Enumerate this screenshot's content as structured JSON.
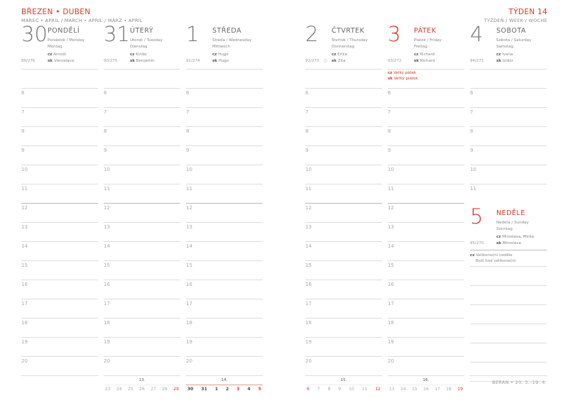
{
  "header": {
    "months": "BŘEZEN • DUBEN",
    "months_sub": "MAREC • APRÍL / MARCH • APRIL / MÄRZ • APRIL",
    "week": "TÝDEN 14",
    "week_sub": "TÝŽDEŇ / WEEK / WOCHE"
  },
  "hours": [
    "6",
    "7",
    "8",
    "9",
    "10",
    "11",
    "12",
    "13",
    "14",
    "15",
    "16",
    "17",
    "18",
    "19",
    "20"
  ],
  "days": [
    {
      "num": "30",
      "name": "PONDĚLÍ",
      "sub1": "Pondelok / Monday",
      "sub2": "Montag",
      "doy": "89/276",
      "cz": "Arnošt",
      "sk": "Vieroslava",
      "red": false
    },
    {
      "num": "31",
      "name": "ÚTERÝ",
      "sub1": "Utorok / Tuesday",
      "sub2": "Dienstag",
      "doy": "90/275",
      "cz": "Kvido",
      "sk": "Benjamín",
      "red": false
    },
    {
      "num": "1",
      "name": "STŘEDA",
      "sub1": "Streda / Wednesday",
      "sub2": "Mittwoch",
      "doy": "91/274",
      "cz": "Hugo",
      "sk": "Hugo",
      "red": false
    },
    {
      "num": "2",
      "name": "ČTVRTEK",
      "sub1": "Štvrtok / Thursday",
      "sub2": "Donnerstag",
      "doy": "92/273",
      "moon": "○",
      "cz": "Erika",
      "sk": "Zita",
      "red": false
    },
    {
      "num": "3",
      "name": "PÁTEK",
      "sub1": "Piatok / Friday",
      "sub2": "Freitag",
      "doy": "93/272",
      "cz": "Richard",
      "sk": "Richard",
      "red": true,
      "hol_cz": "Velký pátek",
      "hol_sk": "Veľký piatok"
    },
    {
      "num": "4",
      "name": "SOBOTA",
      "sub1": "Sobota / Saturday",
      "sub2": "Samstag",
      "doy": "94/271",
      "cz": "Ivana",
      "sk": "Izidor",
      "red": false
    },
    {
      "num": "5",
      "name": "NEDĚLE",
      "sub1": "Nedeľa / Sunday",
      "sub2": "Sonntag",
      "doy": "95/270",
      "cz": "Miroslava, Mirka",
      "sk": "Miroslava",
      "red": true,
      "hol_cz": "Velikonoční neděle",
      "hol_cz2": "Boží hod velikonoční"
    }
  ],
  "lang": {
    "cz": "cz",
    "sk": "sk"
  },
  "minicals": [
    {
      "week": "13.",
      "days": [
        "23",
        "24",
        "25",
        "26",
        "27",
        "28",
        "29"
      ],
      "current": false
    },
    {
      "week": "14.",
      "days": [
        "30",
        "31",
        "1",
        "2",
        "3",
        "4",
        "5"
      ],
      "current": true
    },
    {
      "week": "15.",
      "days": [
        "6",
        "7",
        "8",
        "9",
        "10",
        "11",
        "12"
      ],
      "current": false
    },
    {
      "week": "16.",
      "days": [
        "13",
        "14",
        "15",
        "16",
        "17",
        "18",
        "19"
      ],
      "current": false
    }
  ],
  "footer": "BERAN • 20. 3.–19. 4.",
  "colors": {
    "accent": "#d23a2a"
  }
}
